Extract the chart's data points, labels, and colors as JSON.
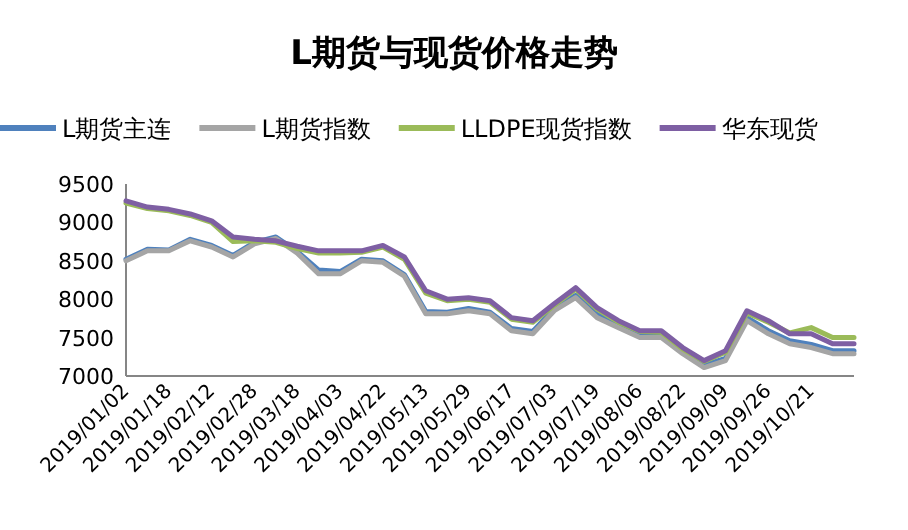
{
  "chart_data": {
    "type": "line",
    "title": "L期货与现货价格走势",
    "legend": "top",
    "ylim": [
      7000,
      9500
    ],
    "yticks": [
      7000,
      7500,
      8000,
      8500,
      9000,
      9500
    ],
    "categories": [
      "2019/01/02",
      null,
      "2019/01/18",
      null,
      "2019/02/12",
      null,
      "2019/02/28",
      null,
      "2019/03/18",
      null,
      "2019/04/03",
      null,
      "2019/04/22",
      null,
      "2019/05/13",
      null,
      "2019/05/29",
      null,
      "2019/06/17",
      null,
      "2019/07/03",
      null,
      "2019/07/19",
      null,
      "2019/08/06",
      null,
      "2019/08/22",
      null,
      "2019/09/09",
      null,
      "2019/09/26",
      null,
      "2019/10/21",
      null,
      null
    ],
    "series": [
      {
        "name": "L期货主连",
        "color": "#4f81bd",
        "values": [
          8520,
          8650,
          8640,
          8780,
          8700,
          8570,
          8740,
          8810,
          8620,
          8380,
          8360,
          8520,
          8500,
          8320,
          7840,
          7830,
          7880,
          7830,
          7620,
          7580,
          7880,
          8050,
          7800,
          7660,
          7530,
          7530,
          7320,
          7140,
          7230,
          7760,
          7590,
          7460,
          7410,
          7330,
          7330
        ]
      },
      {
        "name": "L期货指数",
        "color": "#a5a5a5",
        "values": [
          8500,
          8630,
          8630,
          8760,
          8680,
          8550,
          8720,
          8790,
          8600,
          8330,
          8330,
          8500,
          8480,
          8300,
          7810,
          7810,
          7850,
          7810,
          7590,
          7550,
          7850,
          8020,
          7760,
          7630,
          7500,
          7500,
          7290,
          7110,
          7200,
          7720,
          7550,
          7420,
          7370,
          7290,
          7290
        ]
      },
      {
        "name": "LLDPE现货指数",
        "color": "#9bbb59",
        "values": [
          9250,
          9180,
          9150,
          9090,
          9000,
          8750,
          8760,
          8740,
          8660,
          8600,
          8600,
          8610,
          8680,
          8520,
          8080,
          7980,
          8000,
          7960,
          7740,
          7700,
          7920,
          8130,
          7870,
          7700,
          7580,
          7570,
          7350,
          7190,
          7310,
          7820,
          7700,
          7560,
          7630,
          7500,
          7500
        ]
      },
      {
        "name": "华东现货",
        "color": "#7e5fa3",
        "values": [
          9280,
          9200,
          9170,
          9110,
          9020,
          8810,
          8780,
          8760,
          8690,
          8630,
          8630,
          8630,
          8700,
          8550,
          8110,
          8000,
          8020,
          7980,
          7760,
          7720,
          7940,
          8150,
          7890,
          7720,
          7590,
          7590,
          7370,
          7200,
          7330,
          7850,
          7720,
          7550,
          7550,
          7420,
          7420
        ]
      }
    ]
  }
}
